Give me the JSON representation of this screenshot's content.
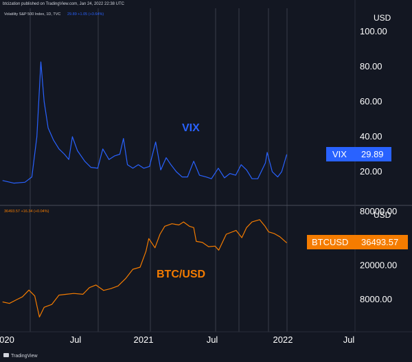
{
  "header": {
    "published": "btcization published on TradingView.com, Jan 24, 2022 22:38 UTC"
  },
  "vix_pane": {
    "series_title": "Volatility S&P 500 Index, 1D, TVC",
    "series_values": "29.89  +1.05 (+3.64%)",
    "chart_label": "VIX",
    "currency": "USD",
    "price_tag": {
      "symbol": "VIX",
      "value": "29.89"
    },
    "axis_ticks": [
      "100.00",
      "80.00",
      "60.00",
      "40.00",
      "20.00"
    ]
  },
  "btc_pane": {
    "series_values": "36493.57  +16.34 (+0.04%)",
    "chart_label": "BTC/USD",
    "currency": "USD",
    "price_tag": {
      "symbol": "BTCUSD",
      "value": "36493.57"
    },
    "axis_ticks": [
      "80000.00",
      "20000.00",
      "8000.00"
    ]
  },
  "time_axis": {
    "labels": [
      "020",
      "Jul",
      "2021",
      "Jul",
      "2022",
      "Jul"
    ]
  },
  "footer": {
    "brand": "TradingView"
  },
  "colors": {
    "background": "#131722",
    "vix_line": "#2962ff",
    "btc_line": "#f57c00",
    "vix_tag": "#2962ff",
    "btc_tag": "#f57c00",
    "grid": "#363a45",
    "text": "#ffffff"
  },
  "chart_data": [
    {
      "type": "line",
      "title": "Volatility S&P 500 Index, 1D, TVC",
      "ylabel": "USD",
      "ylim": [
        10,
        105
      ],
      "series": [
        {
          "name": "VIX",
          "x": [
            "2019-12-01",
            "2020-01-01",
            "2020-02-01",
            "2020-02-20",
            "2020-03-05",
            "2020-03-16",
            "2020-03-25",
            "2020-04-05",
            "2020-04-20",
            "2020-05-05",
            "2020-05-20",
            "2020-06-01",
            "2020-06-11",
            "2020-06-25",
            "2020-07-15",
            "2020-08-01",
            "2020-08-20",
            "2020-09-03",
            "2020-09-20",
            "2020-10-05",
            "2020-10-20",
            "2020-10-30",
            "2020-11-10",
            "2020-11-25",
            "2020-12-10",
            "2020-12-25",
            "2021-01-10",
            "2021-01-27",
            "2021-02-10",
            "2021-02-25",
            "2021-03-10",
            "2021-03-25",
            "2021-04-10",
            "2021-04-25",
            "2021-05-12",
            "2021-05-28",
            "2021-06-15",
            "2021-06-30",
            "2021-07-19",
            "2021-08-05",
            "2021-08-20",
            "2021-09-05",
            "2021-09-20",
            "2021-10-05",
            "2021-10-20",
            "2021-11-05",
            "2021-11-26",
            "2021-12-01",
            "2021-12-15",
            "2021-12-30",
            "2022-01-10",
            "2022-01-24"
          ],
          "values": [
            15,
            13.5,
            14,
            17,
            40,
            82.7,
            60,
            45,
            38,
            33,
            30,
            27,
            40,
            32,
            26,
            22.5,
            22,
            33,
            27,
            29,
            30,
            39,
            24,
            22,
            24,
            22,
            23,
            37,
            21,
            28,
            24,
            20,
            17,
            17,
            26,
            18,
            17,
            16,
            22,
            16.5,
            19,
            18,
            24,
            21,
            16,
            16,
            25,
            31,
            20,
            17,
            20,
            29.89
          ]
        }
      ]
    },
    {
      "type": "line",
      "title": "BTC/USD",
      "ylabel": "USD",
      "yscale": "log",
      "series": [
        {
          "name": "BTC/USD",
          "x": [
            "2019-12-01",
            "2019-12-20",
            "2020-01-10",
            "2020-01-25",
            "2020-02-12",
            "2020-02-28",
            "2020-03-12",
            "2020-03-25",
            "2020-04-15",
            "2020-05-05",
            "2020-05-25",
            "2020-06-15",
            "2020-07-10",
            "2020-07-28",
            "2020-08-15",
            "2020-09-05",
            "2020-09-25",
            "2020-10-15",
            "2020-11-05",
            "2020-11-25",
            "2020-12-15",
            "2020-12-31",
            "2021-01-08",
            "2021-01-25",
            "2021-02-08",
            "2021-02-21",
            "2021-03-13",
            "2021-04-01",
            "2021-04-14",
            "2021-04-30",
            "2021-05-12",
            "2021-05-19",
            "2021-06-05",
            "2021-06-22",
            "2021-07-10",
            "2021-07-20",
            "2021-08-10",
            "2021-09-06",
            "2021-09-22",
            "2021-10-05",
            "2021-10-20",
            "2021-11-10",
            "2021-11-25",
            "2021-12-05",
            "2021-12-20",
            "2022-01-05",
            "2022-01-24"
          ],
          "values": [
            7500,
            7200,
            8000,
            8600,
            10300,
            8800,
            5000,
            6500,
            7000,
            9000,
            9200,
            9400,
            9200,
            11000,
            11800,
            10200,
            10700,
            11500,
            14000,
            18000,
            19000,
            29000,
            41000,
            32000,
            46000,
            57000,
            61000,
            59000,
            64000,
            57000,
            55000,
            38000,
            37000,
            33000,
            33500,
            30000,
            46000,
            51000,
            42000,
            55000,
            64000,
            68000,
            57000,
            49000,
            47000,
            43000,
            36493.57
          ]
        }
      ]
    }
  ]
}
